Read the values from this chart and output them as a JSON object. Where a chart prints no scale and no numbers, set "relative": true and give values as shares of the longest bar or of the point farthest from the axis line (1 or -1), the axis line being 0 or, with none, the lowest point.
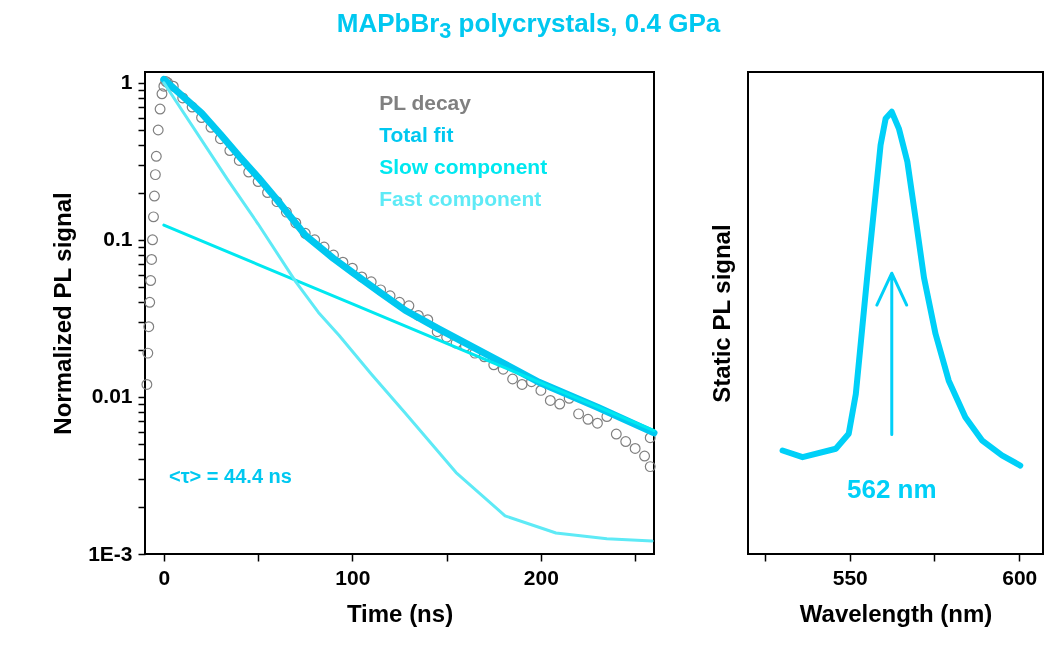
{
  "chart_data": [
    {
      "type": "line",
      "title": "MAPbBr$_{3}$ polycrystals, 0.4 GPa",
      "xlabel": "Time (ns)",
      "ylabel": "Normalized PL signal",
      "log": "y",
      "legend": "top right",
      "xlim": [
        -10,
        260
      ],
      "xticks": [
        0,
        {
          "value": 50,
          "label": null
        },
        100,
        {
          "value": 150,
          "label": null
        },
        200,
        {
          "value": 250,
          "label": null
        }
      ],
      "ylim": [
        0.001,
        1.17
      ],
      "yticks": [
        {
          "value": 0.001,
          "label": "1E-3"
        },
        {
          "value": 0.002,
          "label": null
        },
        {
          "value": 0.003,
          "label": null
        },
        {
          "value": 0.004,
          "label": null
        },
        {
          "value": 0.005,
          "label": null
        },
        {
          "value": 0.006,
          "label": null
        },
        {
          "value": 0.007,
          "label": null
        },
        {
          "value": 0.008,
          "label": null
        },
        {
          "value": 0.009,
          "label": null
        },
        0.01,
        {
          "value": 0.02,
          "label": null
        },
        {
          "value": 0.03,
          "label": null
        },
        {
          "value": 0.04,
          "label": null
        },
        {
          "value": 0.05,
          "label": null
        },
        {
          "value": 0.06,
          "label": null
        },
        {
          "value": 0.07,
          "label": null
        },
        {
          "value": 0.08,
          "label": null
        },
        {
          "value": 0.09,
          "label": null
        },
        0.1,
        {
          "value": 0.2,
          "label": null
        },
        {
          "value": 0.3,
          "label": null
        },
        {
          "value": 0.4,
          "label": null
        },
        {
          "value": 0.5,
          "label": null
        },
        {
          "value": 0.6,
          "label": null
        },
        {
          "value": 0.7,
          "label": null
        },
        {
          "value": 0.8,
          "label": null
        },
        {
          "value": 0.9,
          "label": null
        },
        1
      ],
      "annotations": [
        "<τ> = 44.4 ns"
      ],
      "series": [
        {
          "name": "PL decay",
          "type": "scatter",
          "marker": "circle",
          "color": "#808080",
          "x": [
            -9,
            -8.5,
            -8,
            -7.5,
            -7,
            -6.5,
            -6,
            -5.5,
            -5,
            -4.5,
            -4,
            -3,
            -2,
            -1,
            0,
            1,
            2,
            5,
            10,
            15,
            20,
            25,
            30,
            35,
            40,
            45,
            50,
            55,
            60,
            65,
            70,
            75,
            80,
            85,
            90,
            95,
            100,
            105,
            110,
            115,
            120,
            125,
            130,
            135,
            140,
            145,
            150,
            155,
            160,
            165,
            170,
            175,
            180,
            185,
            190,
            195,
            200,
            205,
            210,
            215,
            220,
            225,
            230,
            235,
            240,
            245,
            250,
            255,
            258,
            258
          ],
          "values": [
            0.012,
            0.019,
            0.028,
            0.04,
            0.055,
            0.075,
            0.1,
            0.14,
            0.19,
            0.26,
            0.34,
            0.5,
            0.68,
            0.85,
            0.95,
            1.02,
            1.0,
            0.95,
            0.8,
            0.7,
            0.6,
            0.52,
            0.44,
            0.37,
            0.32,
            0.27,
            0.235,
            0.2,
            0.175,
            0.15,
            0.128,
            0.11,
            0.1,
            0.09,
            0.08,
            0.072,
            0.066,
            0.058,
            0.054,
            0.048,
            0.044,
            0.04,
            0.038,
            0.033,
            0.031,
            0.026,
            0.024,
            0.022,
            0.021,
            0.019,
            0.018,
            0.016,
            0.015,
            0.013,
            0.012,
            0.0125,
            0.011,
            0.0095,
            0.009,
            0.0098,
            0.0078,
            0.0072,
            0.0068,
            0.0075,
            0.0058,
            0.0052,
            0.0047,
            0.0042,
            0.0036,
            0.0055
          ]
        },
        {
          "name": "Total fit",
          "color": "#00c8f0",
          "x": [
            0,
            10,
            20,
            30,
            40,
            50,
            60,
            75,
            90,
            100,
            115,
            128,
            146,
            170,
            199,
            230,
            260
          ],
          "values": [
            1.05,
            0.82,
            0.64,
            0.47,
            0.34,
            0.25,
            0.18,
            0.107,
            0.076,
            0.062,
            0.046,
            0.0356,
            0.027,
            0.019,
            0.0124,
            0.0086,
            0.0059
          ]
        },
        {
          "name": "Slow component",
          "color": "#00e8f0",
          "x": [
            0,
            50,
            100,
            150,
            200,
            260
          ],
          "values": [
            0.124,
            0.0696,
            0.0391,
            0.0219,
            0.0123,
            0.0061
          ]
        },
        {
          "name": "Fast component",
          "color": "#5eeaf6",
          "x": [
            0,
            34,
            50,
            70,
            82,
            93,
            110,
            128,
            155,
            181,
            208,
            235,
            259
          ],
          "values": [
            1.0,
            0.24,
            0.126,
            0.054,
            0.0345,
            0.0246,
            0.014,
            0.0079,
            0.0033,
            0.00175,
            0.00136,
            0.00125,
            0.00121
          ]
        }
      ]
    },
    {
      "type": "line",
      "relative": true,
      "tick_labels": "x",
      "xlabel": "Wavelength (nm)",
      "ylabel": "Static PL signal",
      "xlim": [
        520,
        607
      ],
      "xticks": [
        {
          "value": 525,
          "label": null
        },
        550,
        {
          "value": 575,
          "label": null
        },
        600
      ],
      "annotations": [
        "562 nm"
      ],
      "series": [
        {
          "color": "#00d0f8",
          "x": [
            530.2,
            536.1,
            545.9,
            549.7,
            551.8,
            553.7,
            555.6,
            557.6,
            559.1,
            560.6,
            562.4,
            564.5,
            567,
            569.4,
            571.9,
            575.3,
            579.2,
            584.1,
            589,
            594.9,
            600.3
          ],
          "values": [
            0.234,
            0.219,
            0.238,
            0.272,
            0.362,
            0.512,
            0.662,
            0.812,
            0.925,
            0.985,
            1.0,
            0.962,
            0.887,
            0.76,
            0.625,
            0.498,
            0.392,
            0.309,
            0.257,
            0.223,
            0.2
          ]
        }
      ]
    }
  ]
}
